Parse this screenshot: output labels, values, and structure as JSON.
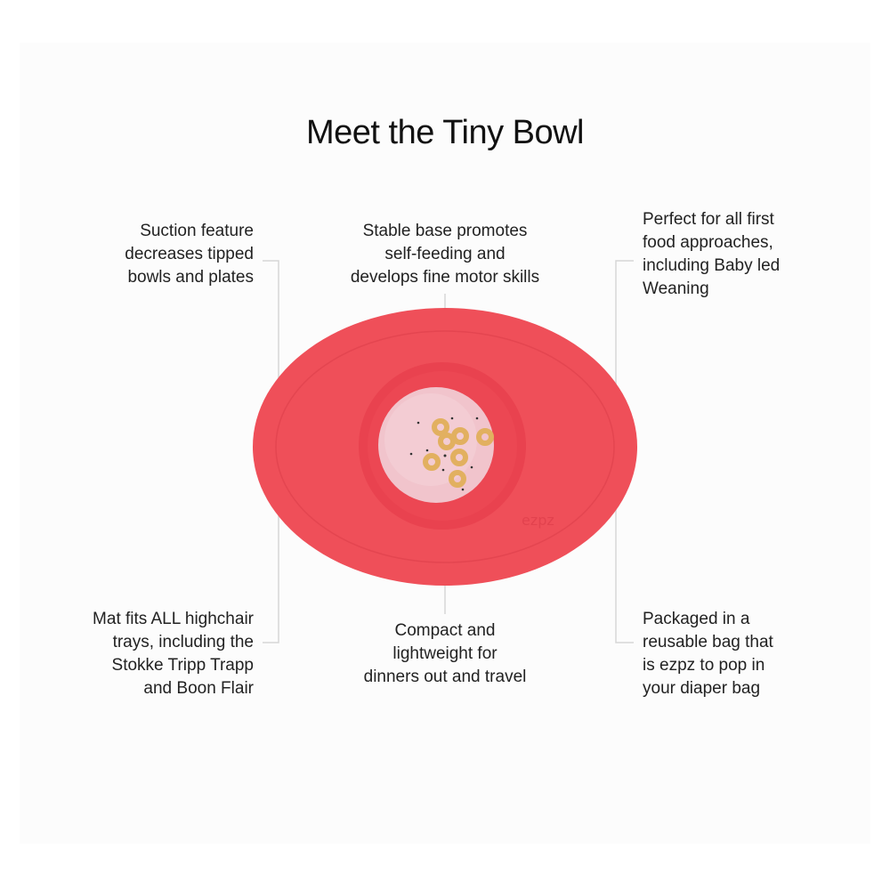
{
  "title": "Meet the Tiny Bowl",
  "product_color": "#ee4f59",
  "logo_text": "ezpz",
  "features": [
    {
      "text": "Suction feature\ndecreases tipped\nbowls and plates"
    },
    {
      "text": "Stable base promotes\nself-feeding and\ndevelops fine motor skills"
    },
    {
      "text": "Perfect for all first\nfood approaches,\nincluding Baby led\nWeaning"
    },
    {
      "text": "Mat fits ALL highchair\ntrays, including the\nStokke Tripp Trapp\nand Boon Flair"
    },
    {
      "text": "Compact and\nlightweight for\ndinners out and travel"
    },
    {
      "text": "Packaged in a\nreusable bag that\nis ezpz to pop in\nyour diaper bag"
    }
  ]
}
